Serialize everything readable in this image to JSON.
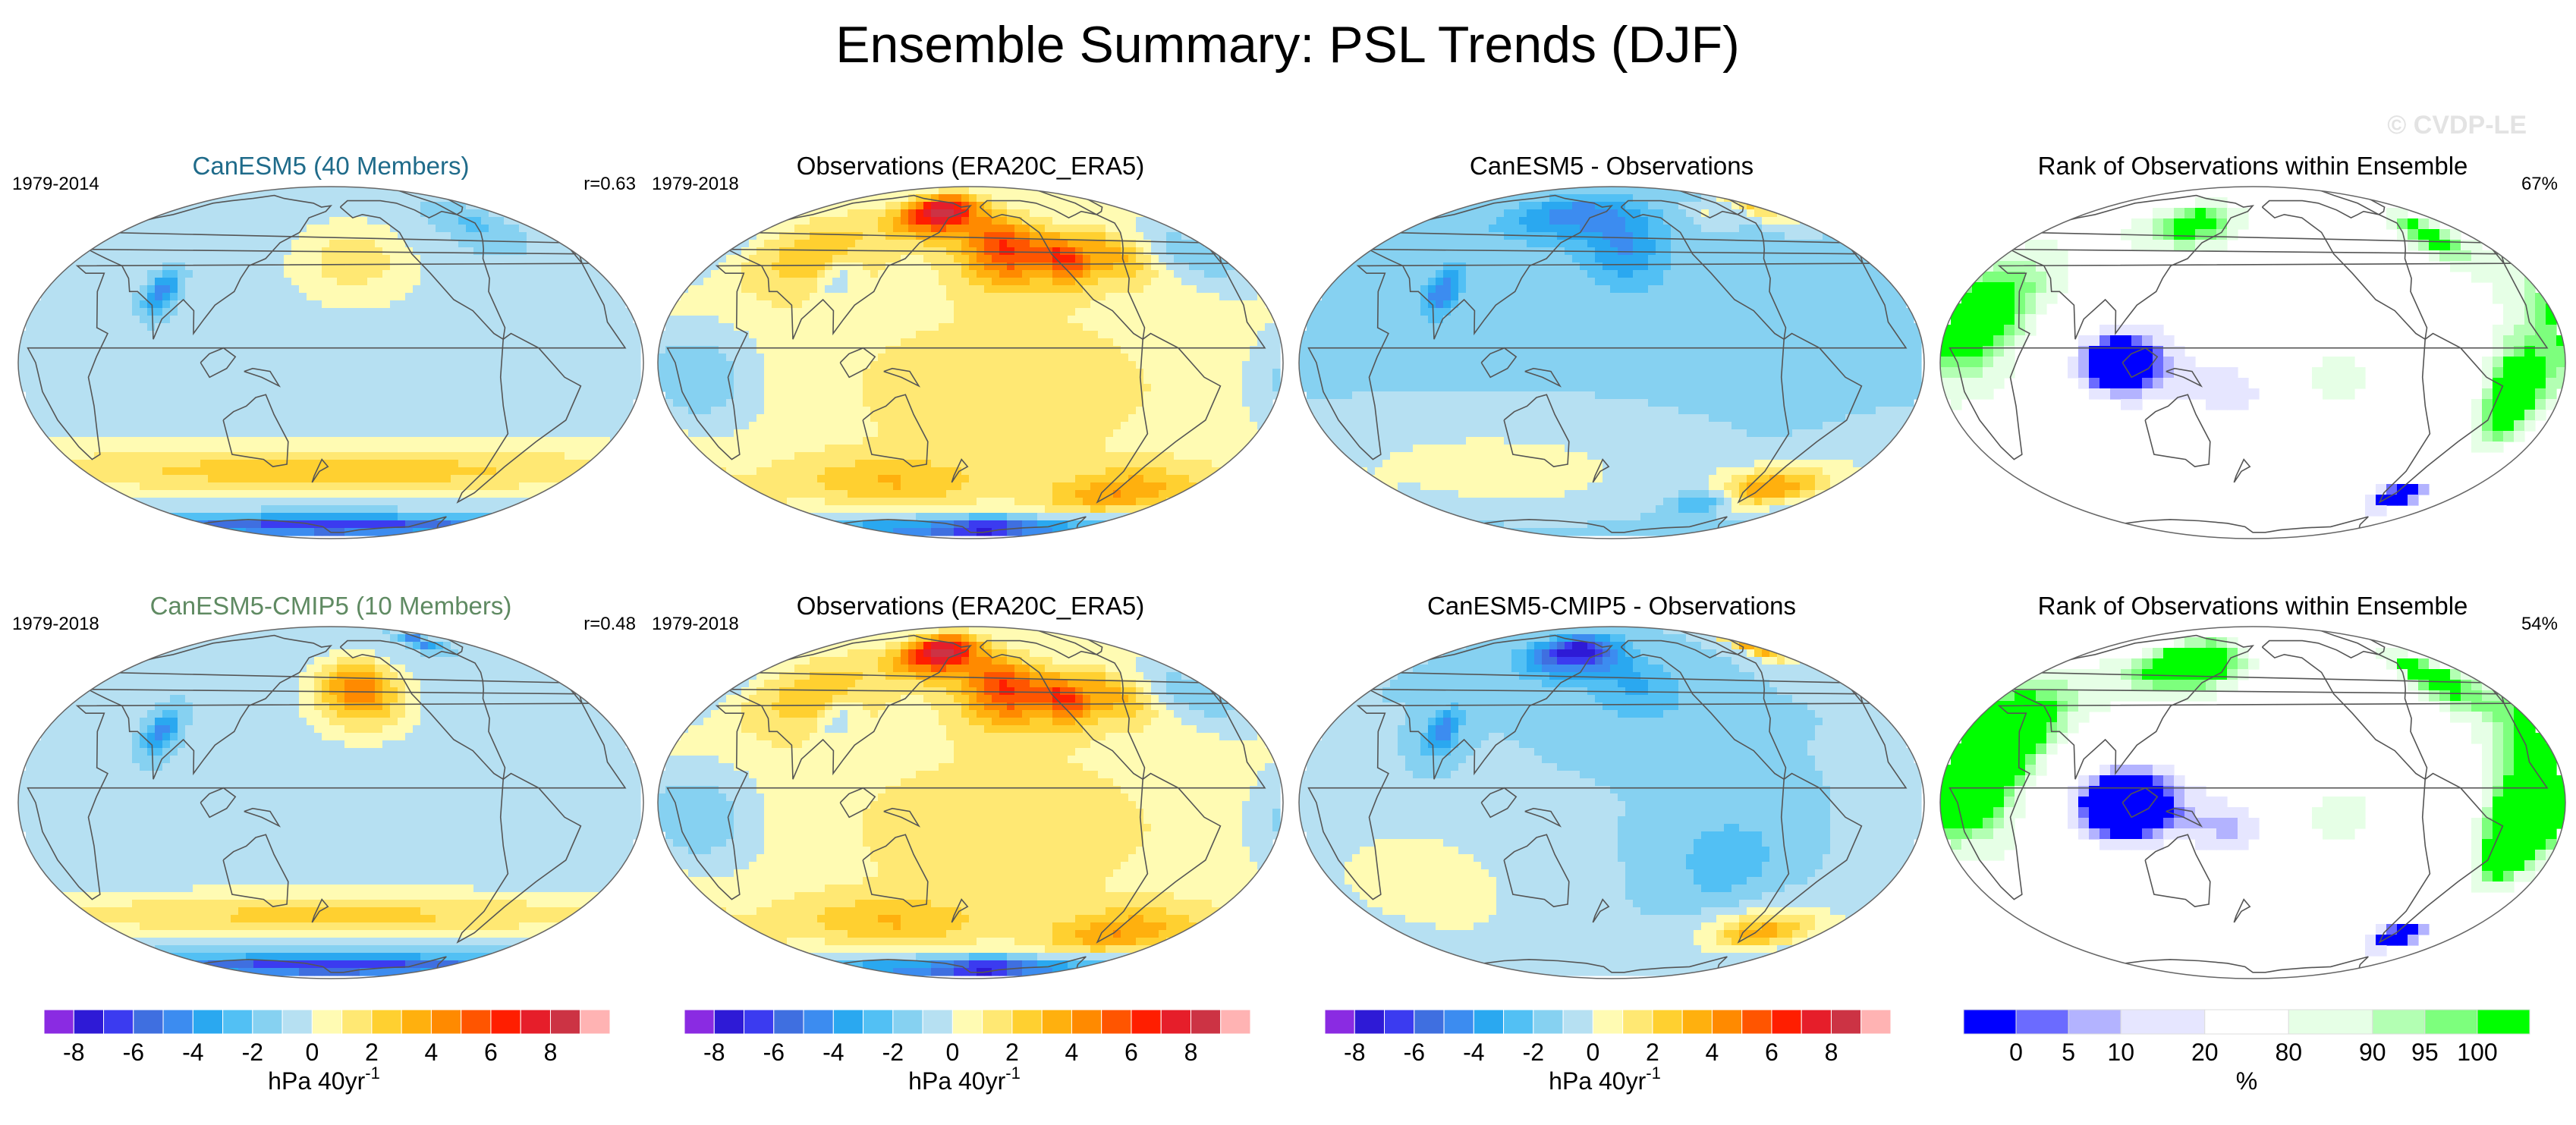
{
  "title": "Ensemble Summary: PSL Trends (DJF)",
  "watermark": "© CVDP-LE",
  "colors": {
    "title_row1_col1": "#1f6b8a",
    "title_row2_col1": "#5f8a62",
    "coast": "#555555"
  },
  "trend_palette": [
    "#8a2be2",
    "#2e1ad6",
    "#3b3bf0",
    "#3f6fe0",
    "#3c8cf0",
    "#2aa8f0",
    "#52c0f4",
    "#86d1f1",
    "#b6e0f2",
    "#fffbb3",
    "#ffe873",
    "#ffd030",
    "#ffb00e",
    "#ff8a00",
    "#ff5500",
    "#ff1e00",
    "#e61e2a",
    "#cc3344",
    "#ffb3b3"
  ],
  "rank_palette": [
    "#0000ff",
    "#6b6bff",
    "#b3b3ff",
    "#e6e6ff",
    "#ffffff",
    "#e6ffe6",
    "#b3ffb3",
    "#7dff7d",
    "#00ff00"
  ],
  "colorbars": {
    "trend": {
      "tick_labels": [
        "-8",
        "-6",
        "-4",
        "-2",
        "0",
        "2",
        "4",
        "6",
        "8"
      ],
      "unit": "hPa 40yr",
      "unit_sup": "-1"
    },
    "rank": {
      "tick_labels": [
        "0",
        "5",
        "10",
        "20",
        "80",
        "90",
        "95",
        "100"
      ],
      "unit": "%"
    }
  },
  "chart_data": [
    {
      "type": "heatmap",
      "kind": "trend",
      "title": "CanESM5 (40 Members)",
      "period": "1979-2014",
      "stat": "r=0.63",
      "colorbar": "trend",
      "value_range": [
        -9,
        9
      ],
      "units": "hPa 40yr-1"
    },
    {
      "type": "heatmap",
      "kind": "trend",
      "title": "Observations (ERA20C_ERA5)",
      "period": "1979-2018",
      "stat": "",
      "colorbar": "trend",
      "value_range": [
        -9,
        9
      ],
      "units": "hPa 40yr-1"
    },
    {
      "type": "heatmap",
      "kind": "trend",
      "title": "CanESM5 - Observations",
      "period": "",
      "stat": "",
      "colorbar": "trend",
      "value_range": [
        -9,
        9
      ],
      "units": "hPa 40yr-1"
    },
    {
      "type": "heatmap",
      "kind": "rank",
      "title": "Rank of Observations within Ensemble",
      "period": "",
      "stat": "67%",
      "colorbar": "rank",
      "value_range": [
        0,
        100
      ],
      "units": "%"
    },
    {
      "type": "heatmap",
      "kind": "trend",
      "title": "CanESM5-CMIP5 (10 Members)",
      "period": "1979-2018",
      "stat": "r=0.48",
      "colorbar": "trend",
      "value_range": [
        -9,
        9
      ],
      "units": "hPa 40yr-1"
    },
    {
      "type": "heatmap",
      "kind": "trend",
      "title": "Observations (ERA20C_ERA5)",
      "period": "1979-2018",
      "stat": "",
      "colorbar": "trend",
      "value_range": [
        -9,
        9
      ],
      "units": "hPa 40yr-1"
    },
    {
      "type": "heatmap",
      "kind": "trend",
      "title": "CanESM5-CMIP5 - Observations",
      "period": "",
      "stat": "",
      "colorbar": "trend",
      "value_range": [
        -9,
        9
      ],
      "units": "hPa 40yr-1"
    },
    {
      "type": "heatmap",
      "kind": "rank",
      "title": "Rank of Observations within Ensemble",
      "period": "",
      "stat": "54%",
      "colorbar": "rank",
      "value_range": [
        0,
        100
      ],
      "units": "%"
    }
  ]
}
